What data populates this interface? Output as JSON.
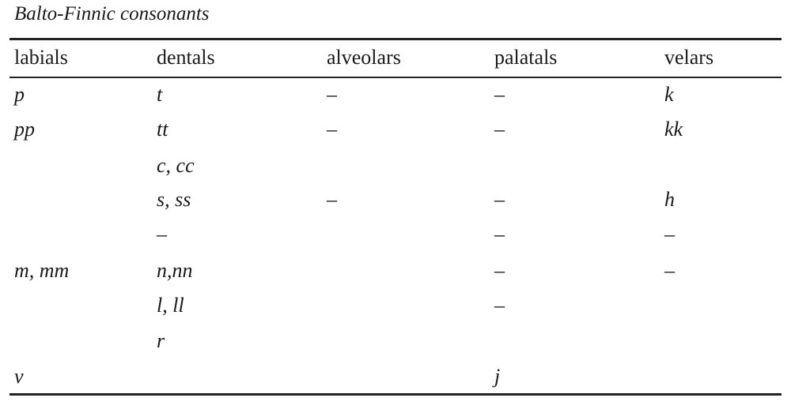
{
  "title": "Balto-Finnic consonants",
  "table": {
    "header": [
      "labials",
      "dentals",
      "alveolars",
      "palatals",
      "velars"
    ],
    "rows": [
      [
        "p",
        "t",
        "–",
        "–",
        "k"
      ],
      [
        "pp",
        "tt",
        "–",
        "–",
        "kk"
      ],
      [
        null,
        "c, cc",
        null,
        null,
        null
      ],
      [
        null,
        "s, ss",
        "–",
        "–",
        "h"
      ],
      [
        null,
        "–",
        null,
        "–",
        "–"
      ],
      [
        "m, mm",
        "n,nn",
        null,
        "–",
        "–"
      ],
      [
        null,
        "l, ll",
        null,
        "–",
        null
      ],
      [
        null,
        "r",
        null,
        null,
        null
      ],
      [
        "v",
        null,
        null,
        "j",
        null
      ]
    ]
  }
}
